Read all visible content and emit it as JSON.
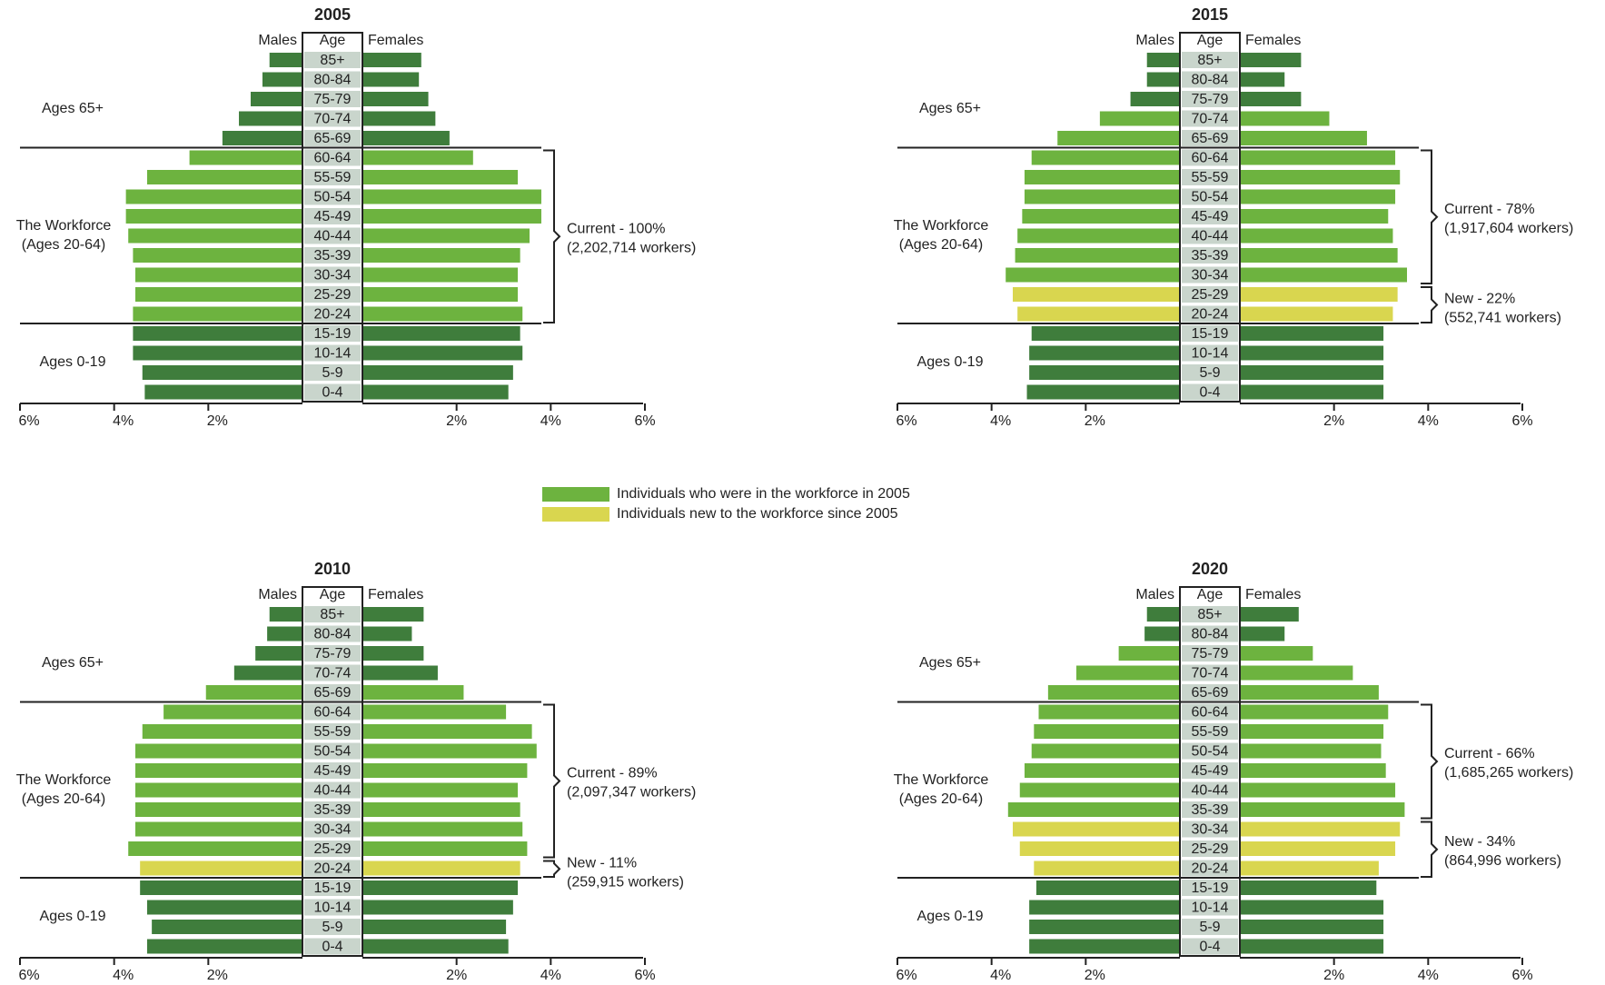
{
  "colors": {
    "dark_green": "#3f7d3c",
    "light_green": "#6db33f",
    "yellow": "#d9d64f",
    "age_box": "#c9d5cc",
    "line": "#222222"
  },
  "legend": [
    {
      "label": "Individuals who were in the workforce in 2005",
      "color": "#6db33f"
    },
    {
      "label": "Individuals new to the workforce since 2005",
      "color": "#d9d64f"
    }
  ],
  "chart_data": [
    {
      "type": "bar",
      "title": "2005",
      "left_header": "Males",
      "mid_header": "Age",
      "right_header": "Females",
      "age_groups": [
        "85+",
        "80-84",
        "75-79",
        "70-74",
        "65-69",
        "60-64",
        "55-59",
        "50-54",
        "45-49",
        "40-44",
        "35-39",
        "30-34",
        "25-29",
        "20-24",
        "15-19",
        "10-14",
        "5-9",
        "0-4"
      ],
      "series": [
        {
          "name": "Males",
          "values": [
            0.7,
            0.85,
            1.1,
            1.35,
            1.7,
            2.4,
            3.3,
            3.75,
            3.75,
            3.7,
            3.6,
            3.55,
            3.55,
            3.6,
            3.6,
            3.6,
            3.4,
            3.35
          ]
        },
        {
          "name": "Females",
          "values": [
            1.25,
            1.2,
            1.4,
            1.55,
            1.85,
            2.35,
            3.3,
            3.8,
            3.8,
            3.55,
            3.35,
            3.3,
            3.3,
            3.4,
            3.35,
            3.4,
            3.2,
            3.1
          ]
        }
      ],
      "categories_color": [
        "dark",
        "dark",
        "dark",
        "dark",
        "dark",
        "light",
        "light",
        "light",
        "light",
        "light",
        "light",
        "light",
        "light",
        "light",
        "dark",
        "dark",
        "dark",
        "dark"
      ],
      "section_labels": {
        "elderly": "Ages 65+",
        "workforce_1": "The Workforce",
        "workforce_2": "(Ages 20-64)",
        "children": "Ages 0-19"
      },
      "brackets": [
        {
          "from": "60-64",
          "to": "20-24",
          "line1": "Current - 100%",
          "line2": "(2,202,714 workers)"
        }
      ],
      "xticks_left": [
        "6%",
        "4%",
        "2%"
      ],
      "xticks_right": [
        "2%",
        "4%",
        "6%"
      ],
      "xlim": [
        0,
        6
      ]
    },
    {
      "type": "bar",
      "title": "2015",
      "left_header": "Males",
      "mid_header": "Age",
      "right_header": "Females",
      "age_groups": [
        "85+",
        "80-84",
        "75-79",
        "70-74",
        "65-69",
        "60-64",
        "55-59",
        "50-54",
        "45-49",
        "40-44",
        "35-39",
        "30-34",
        "25-29",
        "20-24",
        "15-19",
        "10-14",
        "5-9",
        "0-4"
      ],
      "series": [
        {
          "name": "Males",
          "values": [
            0.7,
            0.7,
            1.05,
            1.7,
            2.6,
            3.15,
            3.3,
            3.3,
            3.35,
            3.45,
            3.5,
            3.7,
            3.55,
            3.45,
            3.15,
            3.2,
            3.2,
            3.25
          ]
        },
        {
          "name": "Females",
          "values": [
            1.3,
            0.95,
            1.3,
            1.9,
            2.7,
            3.3,
            3.4,
            3.3,
            3.15,
            3.25,
            3.35,
            3.55,
            3.35,
            3.25,
            3.05,
            3.05,
            3.05,
            3.05
          ]
        }
      ],
      "categories_color": [
        "dark",
        "dark",
        "dark",
        "light",
        "light",
        "light",
        "light",
        "light",
        "light",
        "light",
        "light",
        "light",
        "yellow",
        "yellow",
        "dark",
        "dark",
        "dark",
        "dark"
      ],
      "section_labels": {
        "elderly": "Ages 65+",
        "workforce_1": "The Workforce",
        "workforce_2": "(Ages 20-64)",
        "children": "Ages 0-19"
      },
      "brackets": [
        {
          "from": "60-64",
          "to": "30-34",
          "line1": "Current - 78%",
          "line2": "(1,917,604 workers)"
        },
        {
          "from": "25-29",
          "to": "20-24",
          "line1": "New - 22%",
          "line2": "(552,741 workers)"
        }
      ],
      "xticks_left": [
        "6%",
        "4%",
        "2%"
      ],
      "xticks_right": [
        "2%",
        "4%",
        "6%"
      ],
      "xlim": [
        0,
        6
      ]
    },
    {
      "type": "bar",
      "title": "2010",
      "left_header": "Males",
      "mid_header": "Age",
      "right_header": "Females",
      "age_groups": [
        "85+",
        "80-84",
        "75-79",
        "70-74",
        "65-69",
        "60-64",
        "55-59",
        "50-54",
        "45-49",
        "40-44",
        "35-39",
        "30-34",
        "25-29",
        "20-24",
        "15-19",
        "10-14",
        "5-9",
        "0-4"
      ],
      "series": [
        {
          "name": "Males",
          "values": [
            0.7,
            0.75,
            1.0,
            1.45,
            2.05,
            2.95,
            3.4,
            3.55,
            3.55,
            3.55,
            3.55,
            3.55,
            3.7,
            3.45,
            3.45,
            3.3,
            3.2,
            3.3
          ]
        },
        {
          "name": "Females",
          "values": [
            1.3,
            1.05,
            1.3,
            1.6,
            2.15,
            3.05,
            3.6,
            3.7,
            3.5,
            3.3,
            3.35,
            3.4,
            3.5,
            3.35,
            3.3,
            3.2,
            3.05,
            3.1
          ]
        }
      ],
      "categories_color": [
        "dark",
        "dark",
        "dark",
        "dark",
        "light",
        "light",
        "light",
        "light",
        "light",
        "light",
        "light",
        "light",
        "light",
        "yellow",
        "dark",
        "dark",
        "dark",
        "dark"
      ],
      "section_labels": {
        "elderly": "Ages 65+",
        "workforce_1": "The Workforce",
        "workforce_2": "(Ages 20-64)",
        "children": "Ages 0-19"
      },
      "brackets": [
        {
          "from": "60-64",
          "to": "25-29",
          "line1": "Current - 89%",
          "line2": "(2,097,347 workers)"
        },
        {
          "from": "20-24",
          "to": "20-24",
          "line1": "New - 11%",
          "line2": "(259,915 workers)"
        }
      ],
      "xticks_left": [
        "6%",
        "4%",
        "2%"
      ],
      "xticks_right": [
        "2%",
        "4%",
        "6%"
      ],
      "xlim": [
        0,
        6
      ]
    },
    {
      "type": "bar",
      "title": "2020",
      "left_header": "Males",
      "mid_header": "Age",
      "right_header": "Females",
      "age_groups": [
        "85+",
        "80-84",
        "75-79",
        "70-74",
        "65-69",
        "60-64",
        "55-59",
        "50-54",
        "45-49",
        "40-44",
        "35-39",
        "30-34",
        "25-29",
        "20-24",
        "15-19",
        "10-14",
        "5-9",
        "0-4"
      ],
      "series": [
        {
          "name": "Males",
          "values": [
            0.7,
            0.75,
            1.3,
            2.2,
            2.8,
            3.0,
            3.1,
            3.15,
            3.3,
            3.4,
            3.65,
            3.55,
            3.4,
            3.1,
            3.05,
            3.2,
            3.2,
            3.2
          ]
        },
        {
          "name": "Females",
          "values": [
            1.25,
            0.95,
            1.55,
            2.4,
            2.95,
            3.15,
            3.05,
            3.0,
            3.1,
            3.3,
            3.5,
            3.4,
            3.3,
            2.95,
            2.9,
            3.05,
            3.05,
            3.05
          ]
        }
      ],
      "categories_color": [
        "dark",
        "dark",
        "light",
        "light",
        "light",
        "light",
        "light",
        "light",
        "light",
        "light",
        "light",
        "yellow",
        "yellow",
        "yellow",
        "dark",
        "dark",
        "dark",
        "dark"
      ],
      "section_labels": {
        "elderly": "Ages 65+",
        "workforce_1": "The Workforce",
        "workforce_2": "(Ages 20-64)",
        "children": "Ages 0-19"
      },
      "brackets": [
        {
          "from": "60-64",
          "to": "35-39",
          "line1": "Current - 66%",
          "line2": "(1,685,265 workers)"
        },
        {
          "from": "30-34",
          "to": "20-24",
          "line1": "New - 34%",
          "line2": "(864,996 workers)"
        }
      ],
      "xticks_left": [
        "6%",
        "4%",
        "2%"
      ],
      "xticks_right": [
        "2%",
        "4%",
        "6%"
      ],
      "xlim": [
        0,
        6
      ]
    }
  ]
}
